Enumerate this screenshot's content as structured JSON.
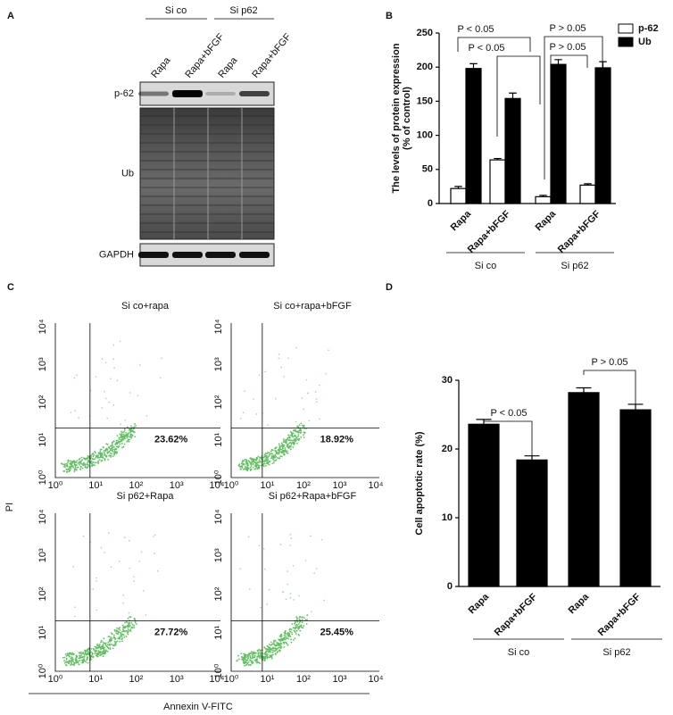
{
  "panel_labels": [
    "A",
    "B",
    "C",
    "D"
  ],
  "blot": {
    "groups": [
      "Si co",
      "Si p62"
    ],
    "lanes": [
      "Rapa",
      "Rapa+bFGF",
      "Rapa",
      "Rapa+bFGF"
    ],
    "rows": [
      "p-62",
      "Ub",
      "GAPDH"
    ]
  },
  "chart_data": [
    {
      "type": "bar",
      "ylabel": [
        "The levels of protein expression",
        "(% of control)"
      ],
      "categories": [
        "Rapa",
        "Rapa+bFGF",
        "Rapa",
        "Rapa+bFGF"
      ],
      "groups": [
        "Si co",
        "Si p62"
      ],
      "series": [
        {
          "name": "p-62",
          "color": "#ffffff",
          "values": [
            22,
            64,
            10,
            27
          ],
          "errors": [
            3,
            2,
            2,
            2
          ]
        },
        {
          "name": "Ub",
          "color": "#000000",
          "values": [
            198,
            154,
            204,
            199
          ],
          "errors": [
            7,
            8,
            7,
            9
          ]
        }
      ],
      "ylim": [
        0,
        250
      ],
      "yticks": [
        0,
        50,
        100,
        150,
        200,
        250
      ],
      "annotations": [
        "P < 0.05",
        "P < 0.05",
        "P > 0.05",
        "P > 0.05"
      ]
    },
    {
      "type": "bar",
      "ylabel": "Cell apoptotic rate (%)",
      "categories": [
        "Rapa",
        "Rapa+bFGF",
        "Rapa",
        "Rapa+bFGF"
      ],
      "groups": [
        "Si co",
        "Si p62"
      ],
      "values": [
        23.6,
        18.4,
        28.2,
        25.7
      ],
      "errors": [
        0.7,
        0.6,
        0.7,
        0.8
      ],
      "color": "#000000",
      "ylim": [
        0,
        30
      ],
      "yticks": [
        0,
        10,
        20,
        30
      ],
      "annotations": [
        "P < 0.05",
        "P > 0.05"
      ]
    }
  ],
  "flow": {
    "titles": [
      "Si co+rapa",
      "Si co+rapa+bFGF",
      "Si p62+Rapa",
      "Si p62+Rapa+bFGF"
    ],
    "percentages": [
      "23.62%",
      "18.92%",
      "27.72%",
      "25.45%"
    ],
    "ticks": [
      "10⁰",
      "10¹",
      "10²",
      "10³",
      "10⁴"
    ],
    "ylabel": "PI",
    "xlabel": "Annexin V-FITC"
  }
}
